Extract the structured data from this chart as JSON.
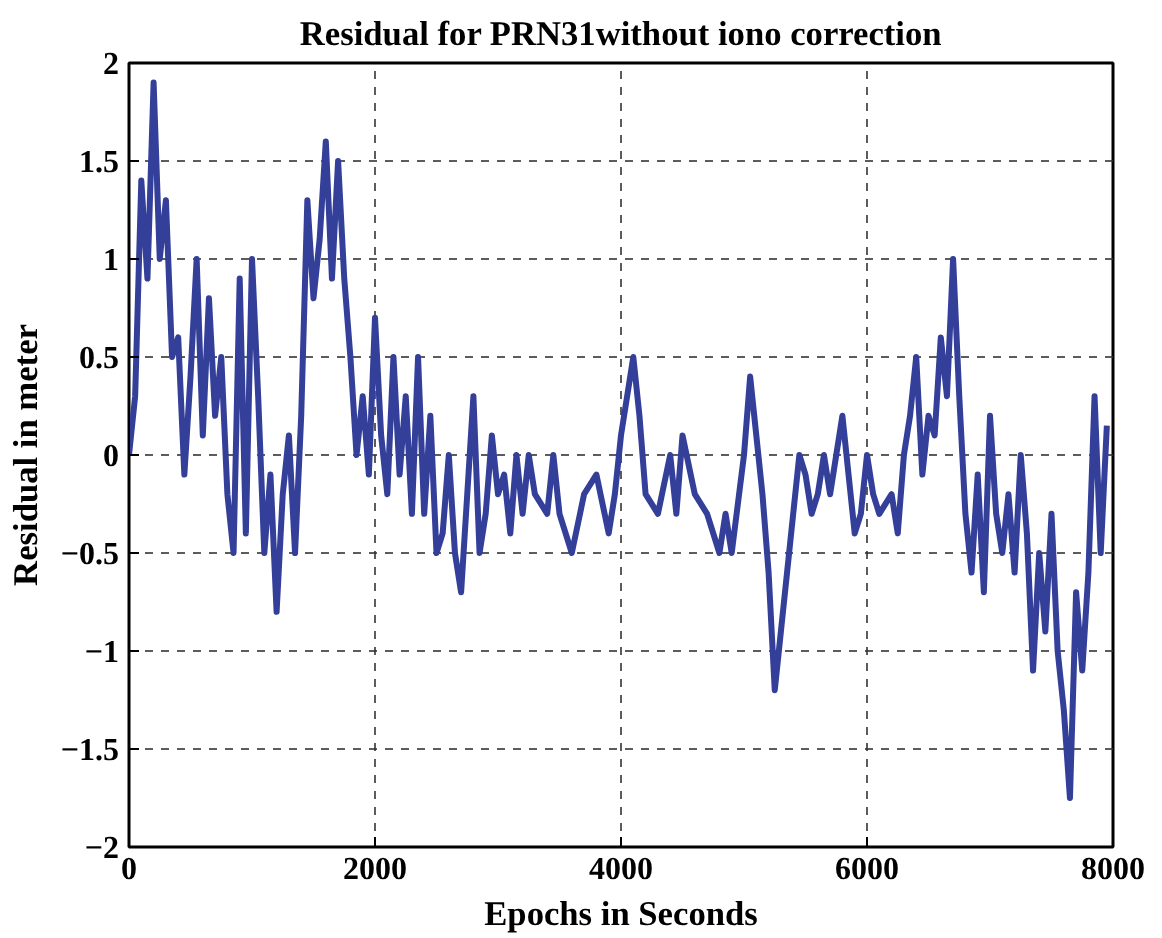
{
  "chart_data": {
    "type": "line",
    "title": "Residual for PRN31without iono correction",
    "xlabel": "Epochs in Seconds",
    "ylabel": "Residual in meter",
    "x": [
      0,
      50,
      100,
      150,
      200,
      250,
      300,
      350,
      400,
      450,
      500,
      550,
      600,
      650,
      700,
      750,
      800,
      850,
      900,
      950,
      1000,
      1050,
      1100,
      1150,
      1200,
      1250,
      1300,
      1350,
      1400,
      1450,
      1500,
      1550,
      1600,
      1650,
      1700,
      1750,
      1800,
      1850,
      1900,
      1950,
      2000,
      2050,
      2100,
      2150,
      2200,
      2250,
      2300,
      2350,
      2400,
      2450,
      2500,
      2550,
      2600,
      2650,
      2700,
      2750,
      2800,
      2850,
      2900,
      2950,
      3000,
      3050,
      3100,
      3150,
      3200,
      3250,
      3300,
      3400,
      3450,
      3500,
      3600,
      3700,
      3800,
      3900,
      3950,
      4000,
      4100,
      4150,
      4200,
      4300,
      4400,
      4450,
      4500,
      4600,
      4700,
      4800,
      4850,
      4900,
      5000,
      5050,
      5100,
      5150,
      5200,
      5250,
      5300,
      5350,
      5400,
      5450,
      5500,
      5550,
      5600,
      5650,
      5700,
      5800,
      5850,
      5900,
      5950,
      6000,
      6050,
      6100,
      6200,
      6250,
      6300,
      6350,
      6400,
      6450,
      6500,
      6550,
      6600,
      6650,
      6700,
      6750,
      6800,
      6850,
      6900,
      6950,
      7000,
      7050,
      7100,
      7150,
      7200,
      7250,
      7300,
      7350,
      7400,
      7450,
      7500,
      7550,
      7600,
      7650,
      7700,
      7750,
      7800,
      7850,
      7900,
      7950
    ],
    "series": [
      {
        "color": "#333f99",
        "values": [
          0,
          0.3,
          1.4,
          0.9,
          1.9,
          1.0,
          1.3,
          0.5,
          0.6,
          -0.1,
          0.4,
          1.0,
          0.1,
          0.8,
          0.2,
          0.5,
          -0.2,
          -0.5,
          0.9,
          -0.4,
          1.0,
          0.3,
          -0.5,
          -0.1,
          -0.8,
          -0.2,
          0.1,
          -0.5,
          0.2,
          1.3,
          0.8,
          1.1,
          1.6,
          0.9,
          1.5,
          0.9,
          0.5,
          0.0,
          0.3,
          -0.1,
          0.7,
          0.1,
          -0.2,
          0.5,
          -0.1,
          0.3,
          -0.3,
          0.5,
          -0.3,
          0.2,
          -0.5,
          -0.4,
          0.0,
          -0.5,
          -0.7,
          -0.2,
          0.3,
          -0.5,
          -0.3,
          0.1,
          -0.2,
          -0.1,
          -0.4,
          0.0,
          -0.3,
          0.0,
          -0.2,
          -0.3,
          0.0,
          -0.3,
          -0.5,
          -0.2,
          -0.1,
          -0.4,
          -0.2,
          0.1,
          0.5,
          0.2,
          -0.2,
          -0.3,
          0.0,
          -0.3,
          0.1,
          -0.2,
          -0.3,
          -0.5,
          -0.3,
          -0.5,
          0.0,
          0.4,
          0.1,
          -0.2,
          -0.6,
          -1.2,
          -0.9,
          -0.6,
          -0.3,
          0.0,
          -0.1,
          -0.3,
          -0.2,
          0.0,
          -0.2,
          0.2,
          -0.1,
          -0.4,
          -0.3,
          0.0,
          -0.2,
          -0.3,
          -0.2,
          -0.4,
          0.0,
          0.2,
          0.5,
          -0.1,
          0.2,
          0.1,
          0.6,
          0.3,
          1.0,
          0.3,
          -0.3,
          -0.6,
          -0.1,
          -0.7,
          0.2,
          -0.3,
          -0.5,
          -0.2,
          -0.6,
          0.0,
          -0.4,
          -1.1,
          -0.5,
          -0.9,
          -0.3,
          -1.0,
          -1.3,
          -1.75,
          -0.7,
          -1.1,
          -0.6,
          0.3,
          -0.5,
          0.15
        ]
      }
    ],
    "xlim": [
      0,
      8000
    ],
    "ylim": [
      -2,
      2
    ],
    "xticks": [
      0,
      2000,
      4000,
      6000,
      8000
    ],
    "yticks": [
      -2,
      -1.5,
      -1,
      -0.5,
      0,
      0.5,
      1,
      1.5,
      2
    ],
    "grid": true,
    "line_style": "solid",
    "marker": "none"
  }
}
